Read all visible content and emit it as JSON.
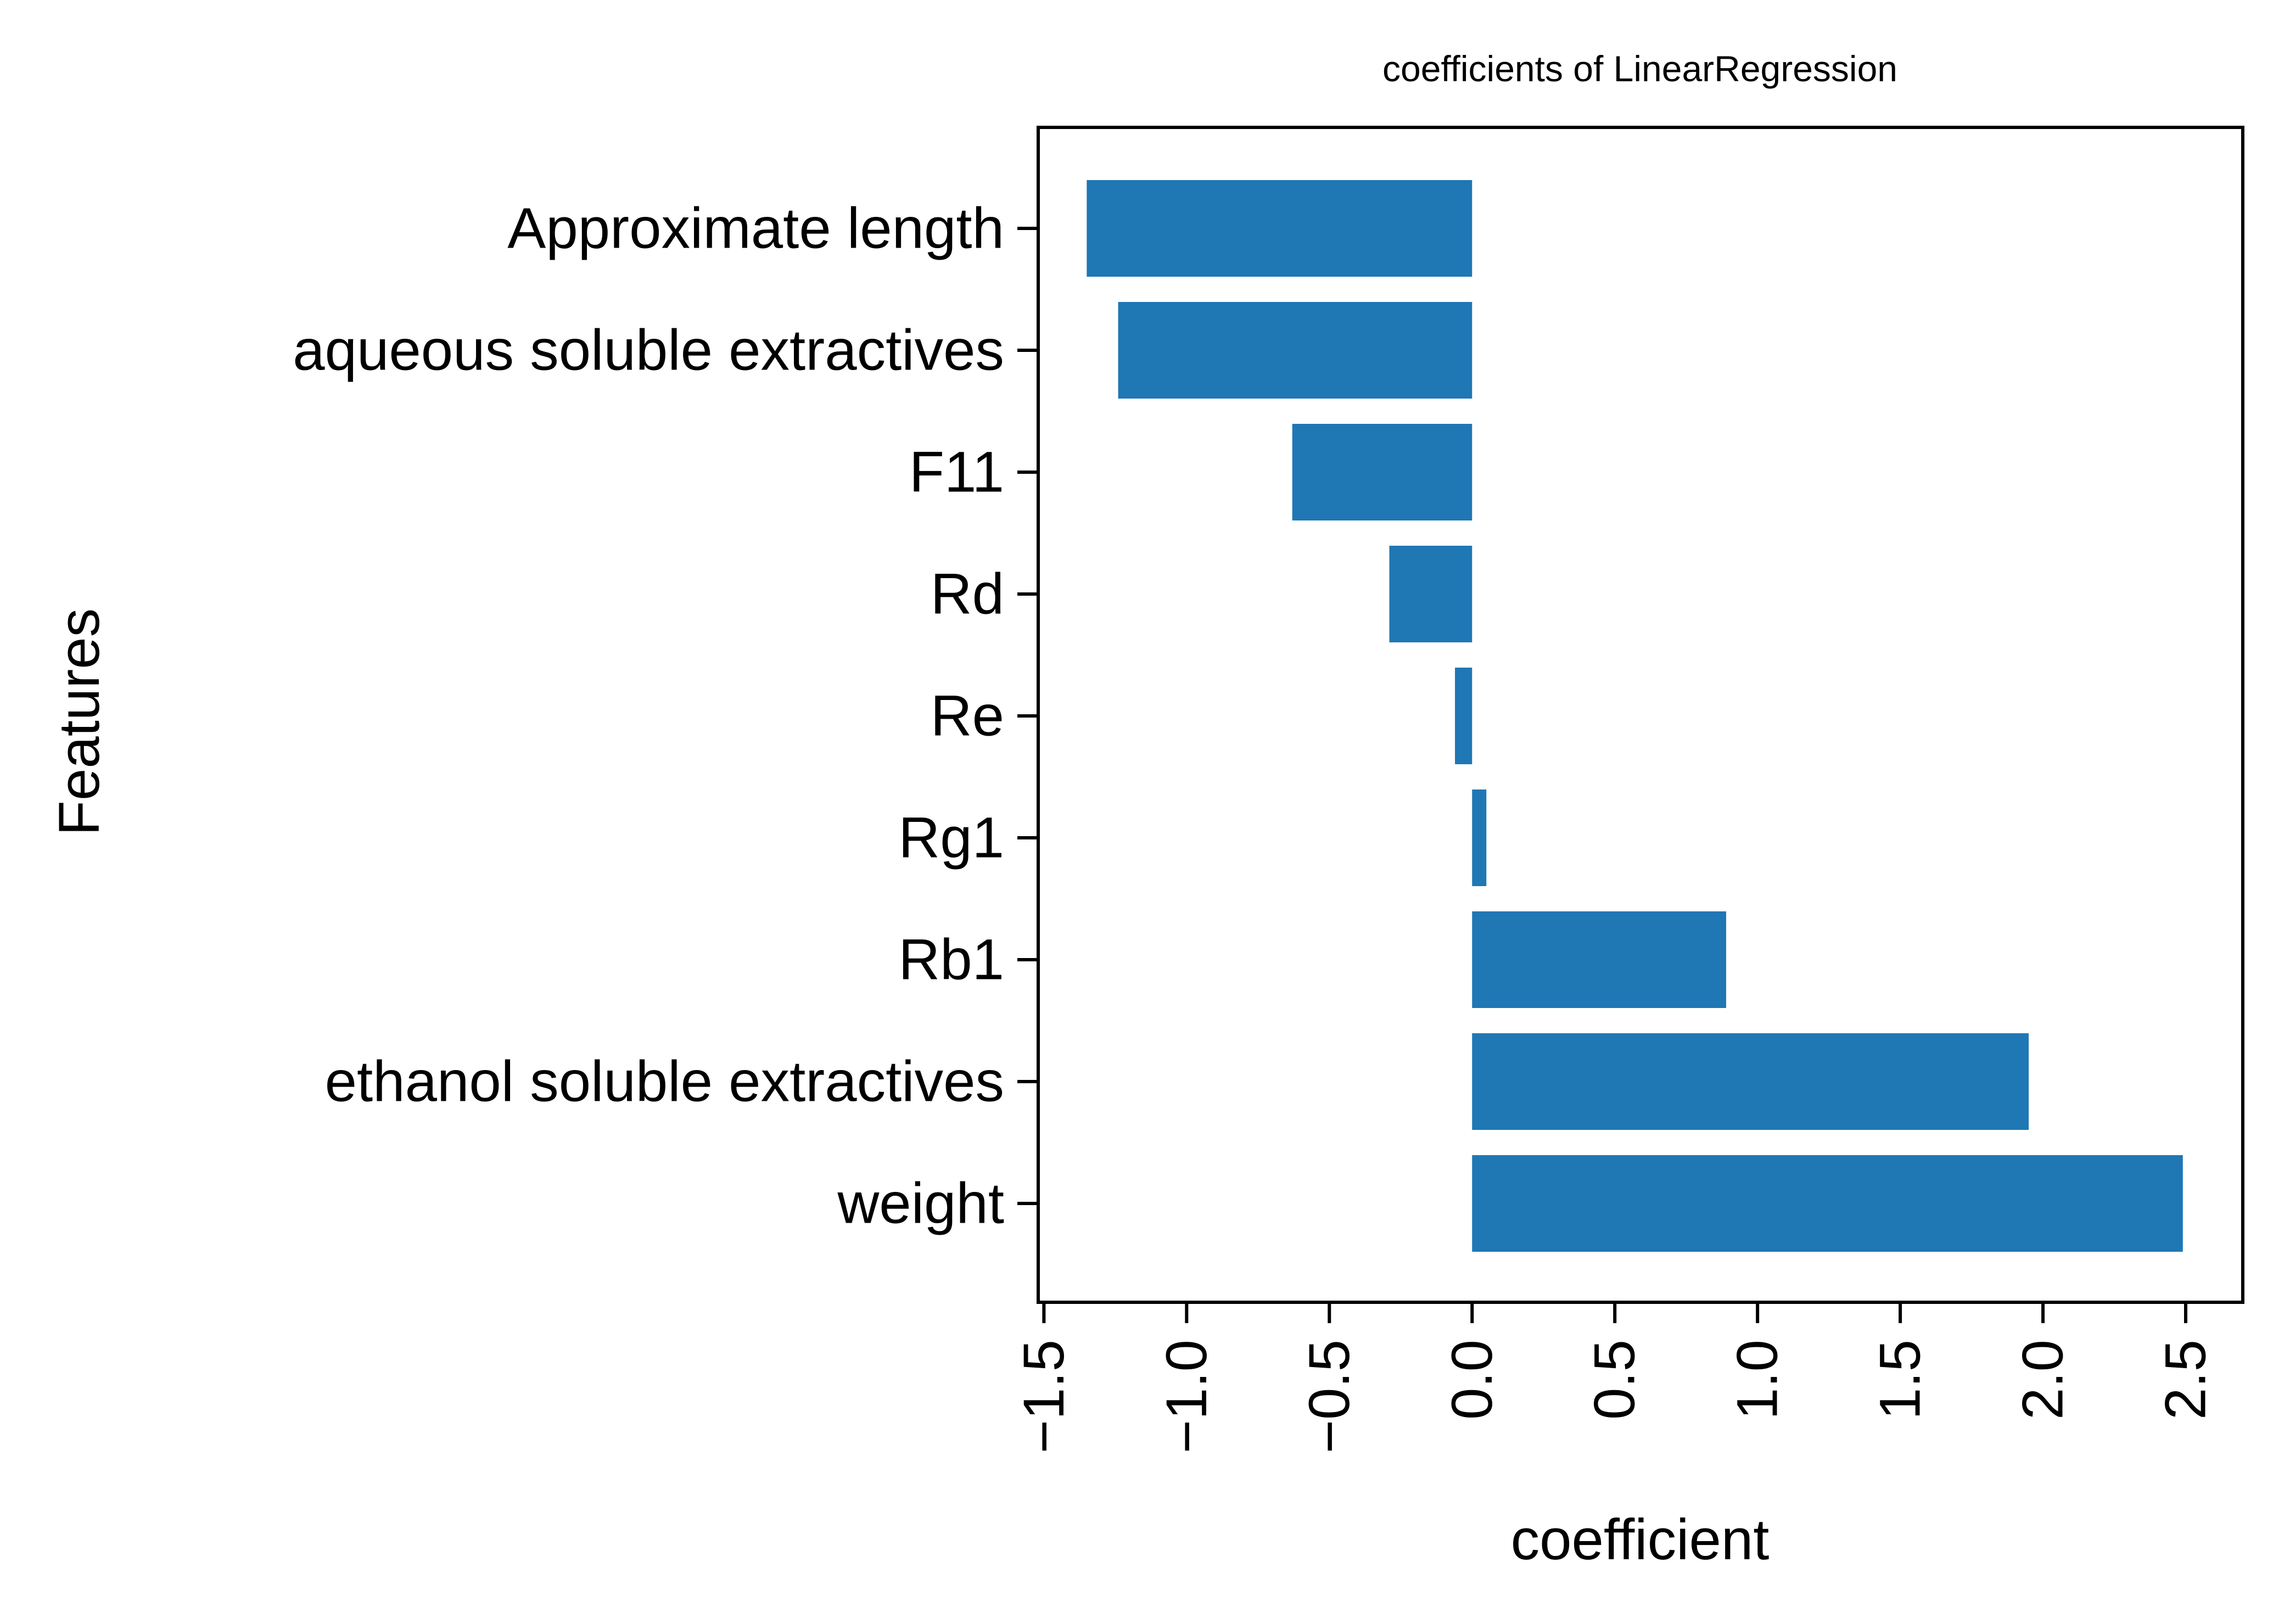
{
  "chart_data": {
    "type": "bar",
    "orientation": "horizontal",
    "title": "coefficients of LinearRegression",
    "xlabel": "coefficient",
    "ylabel": "Features",
    "categories": [
      "Approximate length",
      "aqueous soluble extractives",
      "F11",
      "Rd",
      "Re",
      "Rg1",
      "Rb1",
      "ethanol soluble extractives",
      "weight"
    ],
    "values": [
      -1.35,
      -1.24,
      -0.63,
      -0.29,
      -0.06,
      0.05,
      0.89,
      1.95,
      2.49
    ],
    "xlim": [
      -1.52,
      2.7
    ],
    "xticks": [
      -1.5,
      -1.0,
      -0.5,
      0.0,
      0.5,
      1.0,
      1.5,
      2.0,
      2.5
    ],
    "xtick_labels": [
      "−1.5",
      "−1.0",
      "−0.5",
      "0.0",
      "0.5",
      "1.0",
      "1.5",
      "2.0",
      "2.5"
    ],
    "bar_color": "#1f77b4",
    "grid": false,
    "legend": false
  }
}
